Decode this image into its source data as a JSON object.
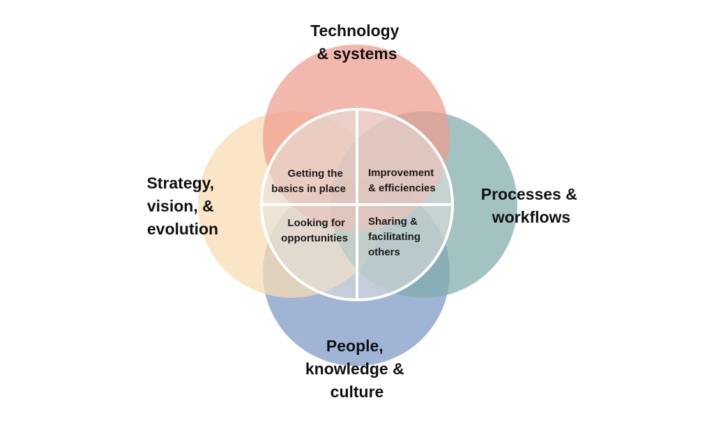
{
  "diagram": {
    "circles": {
      "technology": {
        "label_lines": [
          "Technology",
          "& systems"
        ],
        "color": "#EE9C8E"
      },
      "strategy": {
        "label_lines": [
          "Strategy,",
          "vision, &",
          "evolution"
        ],
        "color": "#F8DDB0"
      },
      "processes": {
        "label_lines": [
          "Processes &",
          "workflows"
        ],
        "color": "#7EACA9"
      },
      "people": {
        "label_lines": [
          "People,",
          "knowledge &",
          "culture"
        ],
        "color": "#7C97C6"
      }
    },
    "center": {
      "fill": "#E4E1DE",
      "stroke": "#FFFFFF",
      "quadrants": {
        "top_left": {
          "label_lines": [
            "Getting the",
            "basics in place"
          ]
        },
        "top_right": {
          "label_lines": [
            "Improvement",
            "& efficiencies"
          ]
        },
        "bottom_left": {
          "label_lines": [
            "Looking for",
            "opportunities"
          ]
        },
        "bottom_right": {
          "label_lines": [
            "Sharing &",
            "facilitating",
            "others"
          ]
        }
      }
    }
  }
}
